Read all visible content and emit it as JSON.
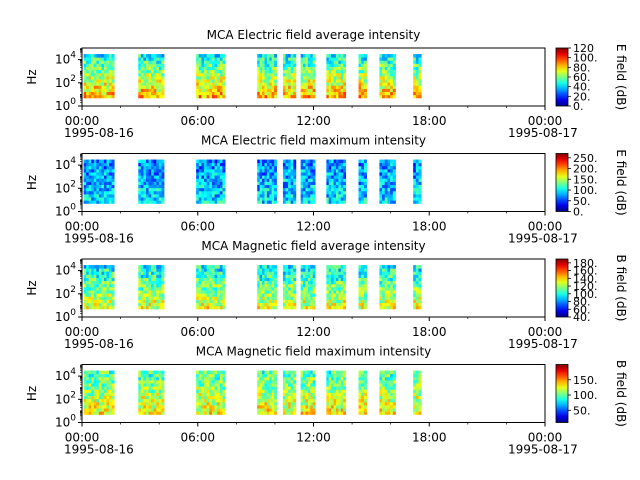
{
  "figure": {
    "time_labels": [
      "00:00",
      "06:00",
      "12:00",
      "18:00",
      "00:00"
    ],
    "date_start": "1995-08-16",
    "date_end": "1995-08-17",
    "y_axis_label": "Hz",
    "colormap": "jet"
  },
  "chart_data": [
    {
      "type": "heatmap",
      "title": "MCA  Electric field average intensity",
      "ylabel": "Hz",
      "yscale": "log",
      "y_ticks": [
        "10^0",
        "10^2",
        "10^4"
      ],
      "x_ticks": [
        "00:00",
        "06:00",
        "12:00",
        "18:00",
        "00:00"
      ],
      "xlim": [
        "1995-08-16 00:00",
        "1995-08-17 00:00"
      ],
      "ylim": [
        1,
        100000
      ],
      "freq_range": [
        5,
        30000
      ],
      "colorbar": {
        "label": "E field (dB)",
        "ticks": [
          "0.",
          "20.",
          "40.",
          "60.",
          "80.",
          "100.",
          "120"
        ],
        "range": [
          0,
          120
        ]
      },
      "time_segments": [
        [
          "00:05",
          "01:40"
        ],
        [
          "02:55",
          "04:15"
        ],
        [
          "05:55",
          "07:25"
        ],
        [
          "09:05",
          "10:05"
        ],
        [
          "10:25",
          "11:05"
        ],
        [
          "11:20",
          "12:05"
        ],
        [
          "12:40",
          "13:40"
        ],
        [
          "14:20",
          "14:45"
        ],
        [
          "15:25",
          "16:15"
        ],
        [
          "17:10",
          "17:35"
        ]
      ],
      "intensity_low_freq": 85,
      "intensity_high_freq": 45
    },
    {
      "type": "heatmap",
      "title": "MCA  Electric field maximum intensity",
      "ylabel": "Hz",
      "yscale": "log",
      "y_ticks": [
        "10^0",
        "10^2",
        "10^4"
      ],
      "x_ticks": [
        "00:00",
        "06:00",
        "12:00",
        "18:00",
        "00:00"
      ],
      "xlim": [
        "1995-08-16 00:00",
        "1995-08-17 00:00"
      ],
      "ylim": [
        1,
        100000
      ],
      "freq_range": [
        5,
        30000
      ],
      "colorbar": {
        "label": "E field (dB)",
        "ticks": [
          "0.",
          "50.",
          "100.",
          "150.",
          "200.",
          "250."
        ],
        "range": [
          0,
          270
        ]
      },
      "time_segments": [
        [
          "00:05",
          "01:40"
        ],
        [
          "02:55",
          "04:15"
        ],
        [
          "05:55",
          "07:25"
        ],
        [
          "09:05",
          "10:05"
        ],
        [
          "10:25",
          "11:05"
        ],
        [
          "11:20",
          "12:05"
        ],
        [
          "12:40",
          "13:40"
        ],
        [
          "14:20",
          "14:45"
        ],
        [
          "15:25",
          "16:15"
        ],
        [
          "17:10",
          "17:35"
        ]
      ],
      "intensity_low_freq": 95,
      "intensity_high_freq": 70
    },
    {
      "type": "heatmap",
      "title": "MCA  Magnetic field average intensity",
      "ylabel": "Hz",
      "yscale": "log",
      "y_ticks": [
        "10^0",
        "10^2",
        "10^4"
      ],
      "x_ticks": [
        "00:00",
        "06:00",
        "12:00",
        "18:00",
        "00:00"
      ],
      "xlim": [
        "1995-08-16 00:00",
        "1995-08-17 00:00"
      ],
      "ylim": [
        1,
        100000
      ],
      "freq_range": [
        5,
        30000
      ],
      "colorbar": {
        "label": "B field (dB)",
        "ticks": [
          "40.",
          "60.",
          "80.",
          "100.",
          "120.",
          "140.",
          "160.",
          "180."
        ],
        "range": [
          40,
          190
        ]
      },
      "time_segments": [
        [
          "00:05",
          "01:40"
        ],
        [
          "02:55",
          "04:15"
        ],
        [
          "05:55",
          "07:25"
        ],
        [
          "09:05",
          "10:05"
        ],
        [
          "10:25",
          "11:05"
        ],
        [
          "11:20",
          "12:05"
        ],
        [
          "12:40",
          "13:40"
        ],
        [
          "14:20",
          "14:45"
        ],
        [
          "15:25",
          "16:15"
        ],
        [
          "17:10",
          "17:35"
        ]
      ],
      "intensity_low_freq": 130,
      "intensity_high_freq": 95
    },
    {
      "type": "heatmap",
      "title": "MCA  Magnetic field maximum intensity",
      "ylabel": "Hz",
      "yscale": "log",
      "y_ticks": [
        "10^0",
        "10^2",
        "10^4"
      ],
      "x_ticks": [
        "00:00",
        "06:00",
        "12:00",
        "18:00",
        "00:00"
      ],
      "xlim": [
        "1995-08-16 00:00",
        "1995-08-17 00:00"
      ],
      "ylim": [
        1,
        100000
      ],
      "freq_range": [
        5,
        30000
      ],
      "colorbar": {
        "label": "B field (dB)",
        "ticks": [
          "50.",
          "100.",
          "150."
        ],
        "range": [
          10,
          200
        ]
      },
      "time_segments": [
        [
          "00:05",
          "01:40"
        ],
        [
          "02:55",
          "04:15"
        ],
        [
          "05:55",
          "07:25"
        ],
        [
          "09:05",
          "10:05"
        ],
        [
          "10:25",
          "11:05"
        ],
        [
          "11:20",
          "12:05"
        ],
        [
          "12:40",
          "13:40"
        ],
        [
          "14:20",
          "14:45"
        ],
        [
          "15:25",
          "16:15"
        ],
        [
          "17:10",
          "17:35"
        ]
      ],
      "intensity_low_freq": 130,
      "intensity_high_freq": 95
    }
  ]
}
